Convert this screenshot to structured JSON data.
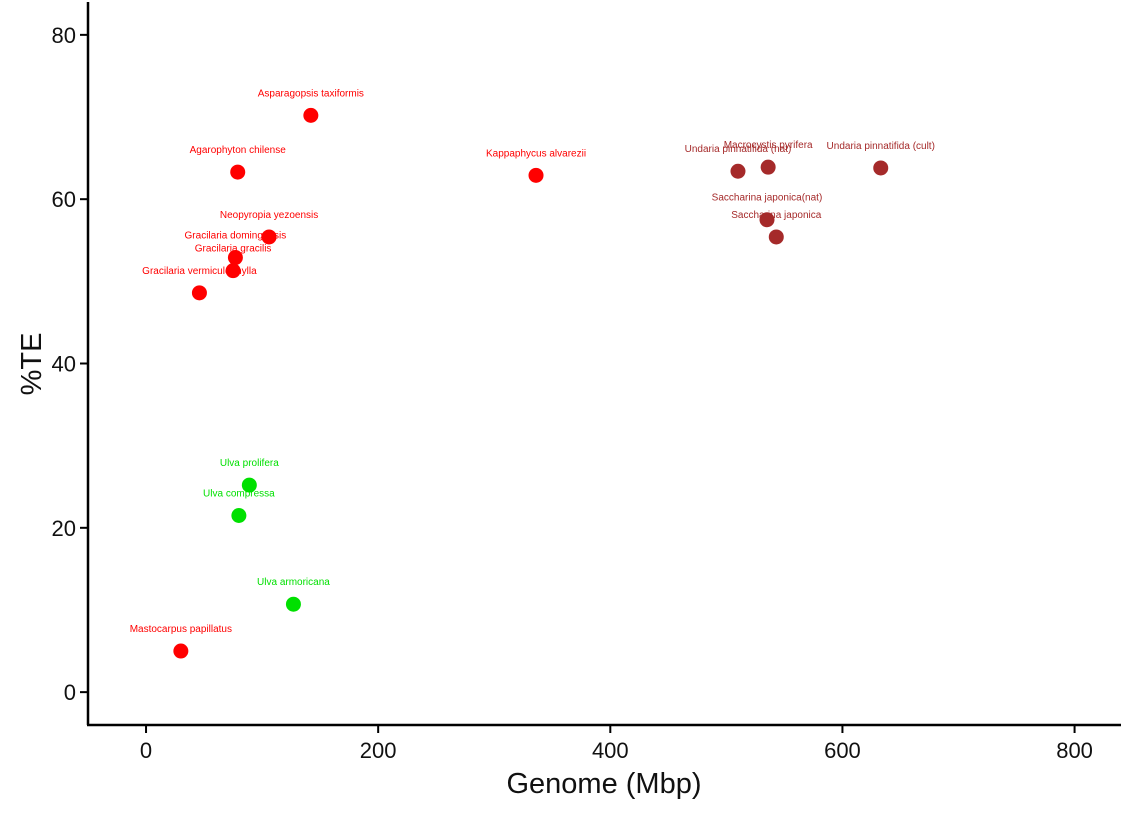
{
  "chart_data": {
    "type": "scatter",
    "title": "",
    "xlabel": "Genome (Mbp)",
    "ylabel": "%TE",
    "xlim": [
      -50,
      840
    ],
    "ylim": [
      -4,
      84
    ],
    "xticks": [
      0,
      200,
      400,
      600,
      800
    ],
    "yticks": [
      0,
      20,
      40,
      60,
      80
    ],
    "grid": false,
    "legend": "none",
    "group_colors": {
      "red": "#ff0000",
      "green": "#00e000",
      "brown": "#a52a2a"
    },
    "points": [
      {
        "label": "Asparagopsis taxiformis",
        "x": 142,
        "y": 70.2,
        "group": "red"
      },
      {
        "label": "Agarophyton chilense",
        "x": 79,
        "y": 63.3,
        "group": "red"
      },
      {
        "label": "Kappaphycus alvarezii",
        "x": 336,
        "y": 62.9,
        "group": "red"
      },
      {
        "label": "Neopyropia yezoensis",
        "x": 106,
        "y": 55.4,
        "group": "red"
      },
      {
        "label": "Gracilaria domingensis",
        "x": 77,
        "y": 52.9,
        "group": "red"
      },
      {
        "label": "Gracilaria gracilis",
        "x": 75,
        "y": 51.3,
        "group": "red"
      },
      {
        "label": "Gracilaria vermiculophylla",
        "x": 46,
        "y": 48.6,
        "group": "red"
      },
      {
        "label": "Mastocarpus papillatus",
        "x": 30,
        "y": 5,
        "group": "red"
      },
      {
        "label": "Ulva prolifera",
        "x": 89,
        "y": 25.2,
        "group": "green"
      },
      {
        "label": "Ulva compressa",
        "x": 80,
        "y": 21.5,
        "group": "green"
      },
      {
        "label": "Ulva armoricana",
        "x": 127,
        "y": 10.7,
        "group": "green"
      },
      {
        "label": "Undaria pinnatifida (nat)",
        "x": 510,
        "y": 63.4,
        "group": "brown"
      },
      {
        "label": "Macrocystis pyrifera",
        "x": 536,
        "y": 63.9,
        "group": "brown"
      },
      {
        "label": "Undaria pinnatifida (cult)",
        "x": 633,
        "y": 63.8,
        "group": "brown"
      },
      {
        "label": "Saccharina japonica(nat)",
        "x": 535,
        "y": 57.5,
        "group": "brown"
      },
      {
        "label": "Saccharina japonica",
        "x": 543,
        "y": 55.4,
        "group": "brown"
      }
    ]
  }
}
